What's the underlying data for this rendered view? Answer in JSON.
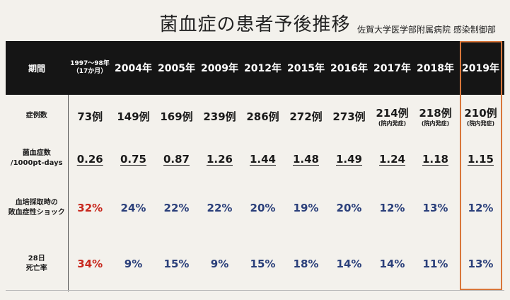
{
  "title": "菌血症の患者予後推移",
  "subtitle": "佐賀大学医学部附属病院 感染制御部",
  "header": {
    "period_label": "期間",
    "first_period_line1": "1997〜98年",
    "first_period_line2": "（17か月）",
    "years": [
      "2004年",
      "2005年",
      "2009年",
      "2012年",
      "2015年",
      "2016年",
      "2017年",
      "2018年",
      "2019年"
    ]
  },
  "rows": {
    "cases_label": "症例数",
    "cases": [
      "73例",
      "149例",
      "169例",
      "239例",
      "286例",
      "272例",
      "273例",
      "214例",
      "218例",
      "210例"
    ],
    "cases_notes": [
      "",
      "",
      "",
      "",
      "",
      "",
      "",
      "(院内発症)",
      "(院内発症)",
      "(院内発症)"
    ],
    "rate_label_line1": "菌血症数",
    "rate_label_line2": "/1000pt-days",
    "rate": [
      "0.26",
      "0.75",
      "0.87",
      "1.26",
      "1.44",
      "1.48",
      "1.49",
      "1.24",
      "1.18",
      "1.15"
    ],
    "shock_label_line1": "血培採取時の",
    "shock_label_line2": "敗血症性ショック",
    "shock": [
      "32%",
      "24%",
      "22%",
      "22%",
      "20%",
      "19%",
      "20%",
      "12%",
      "13%",
      "12%"
    ],
    "mortality_label_line1": "28日",
    "mortality_label_line2": "死亡率",
    "mortality": [
      "34%",
      "9%",
      "15%",
      "9%",
      "15%",
      "18%",
      "14%",
      "14%",
      "11%",
      "13%"
    ]
  },
  "colors": {
    "header_bg": "#151515",
    "first_period_pct": "#c8281e",
    "pct": "#2a3f7a",
    "highlight_border": "#d8763a"
  }
}
